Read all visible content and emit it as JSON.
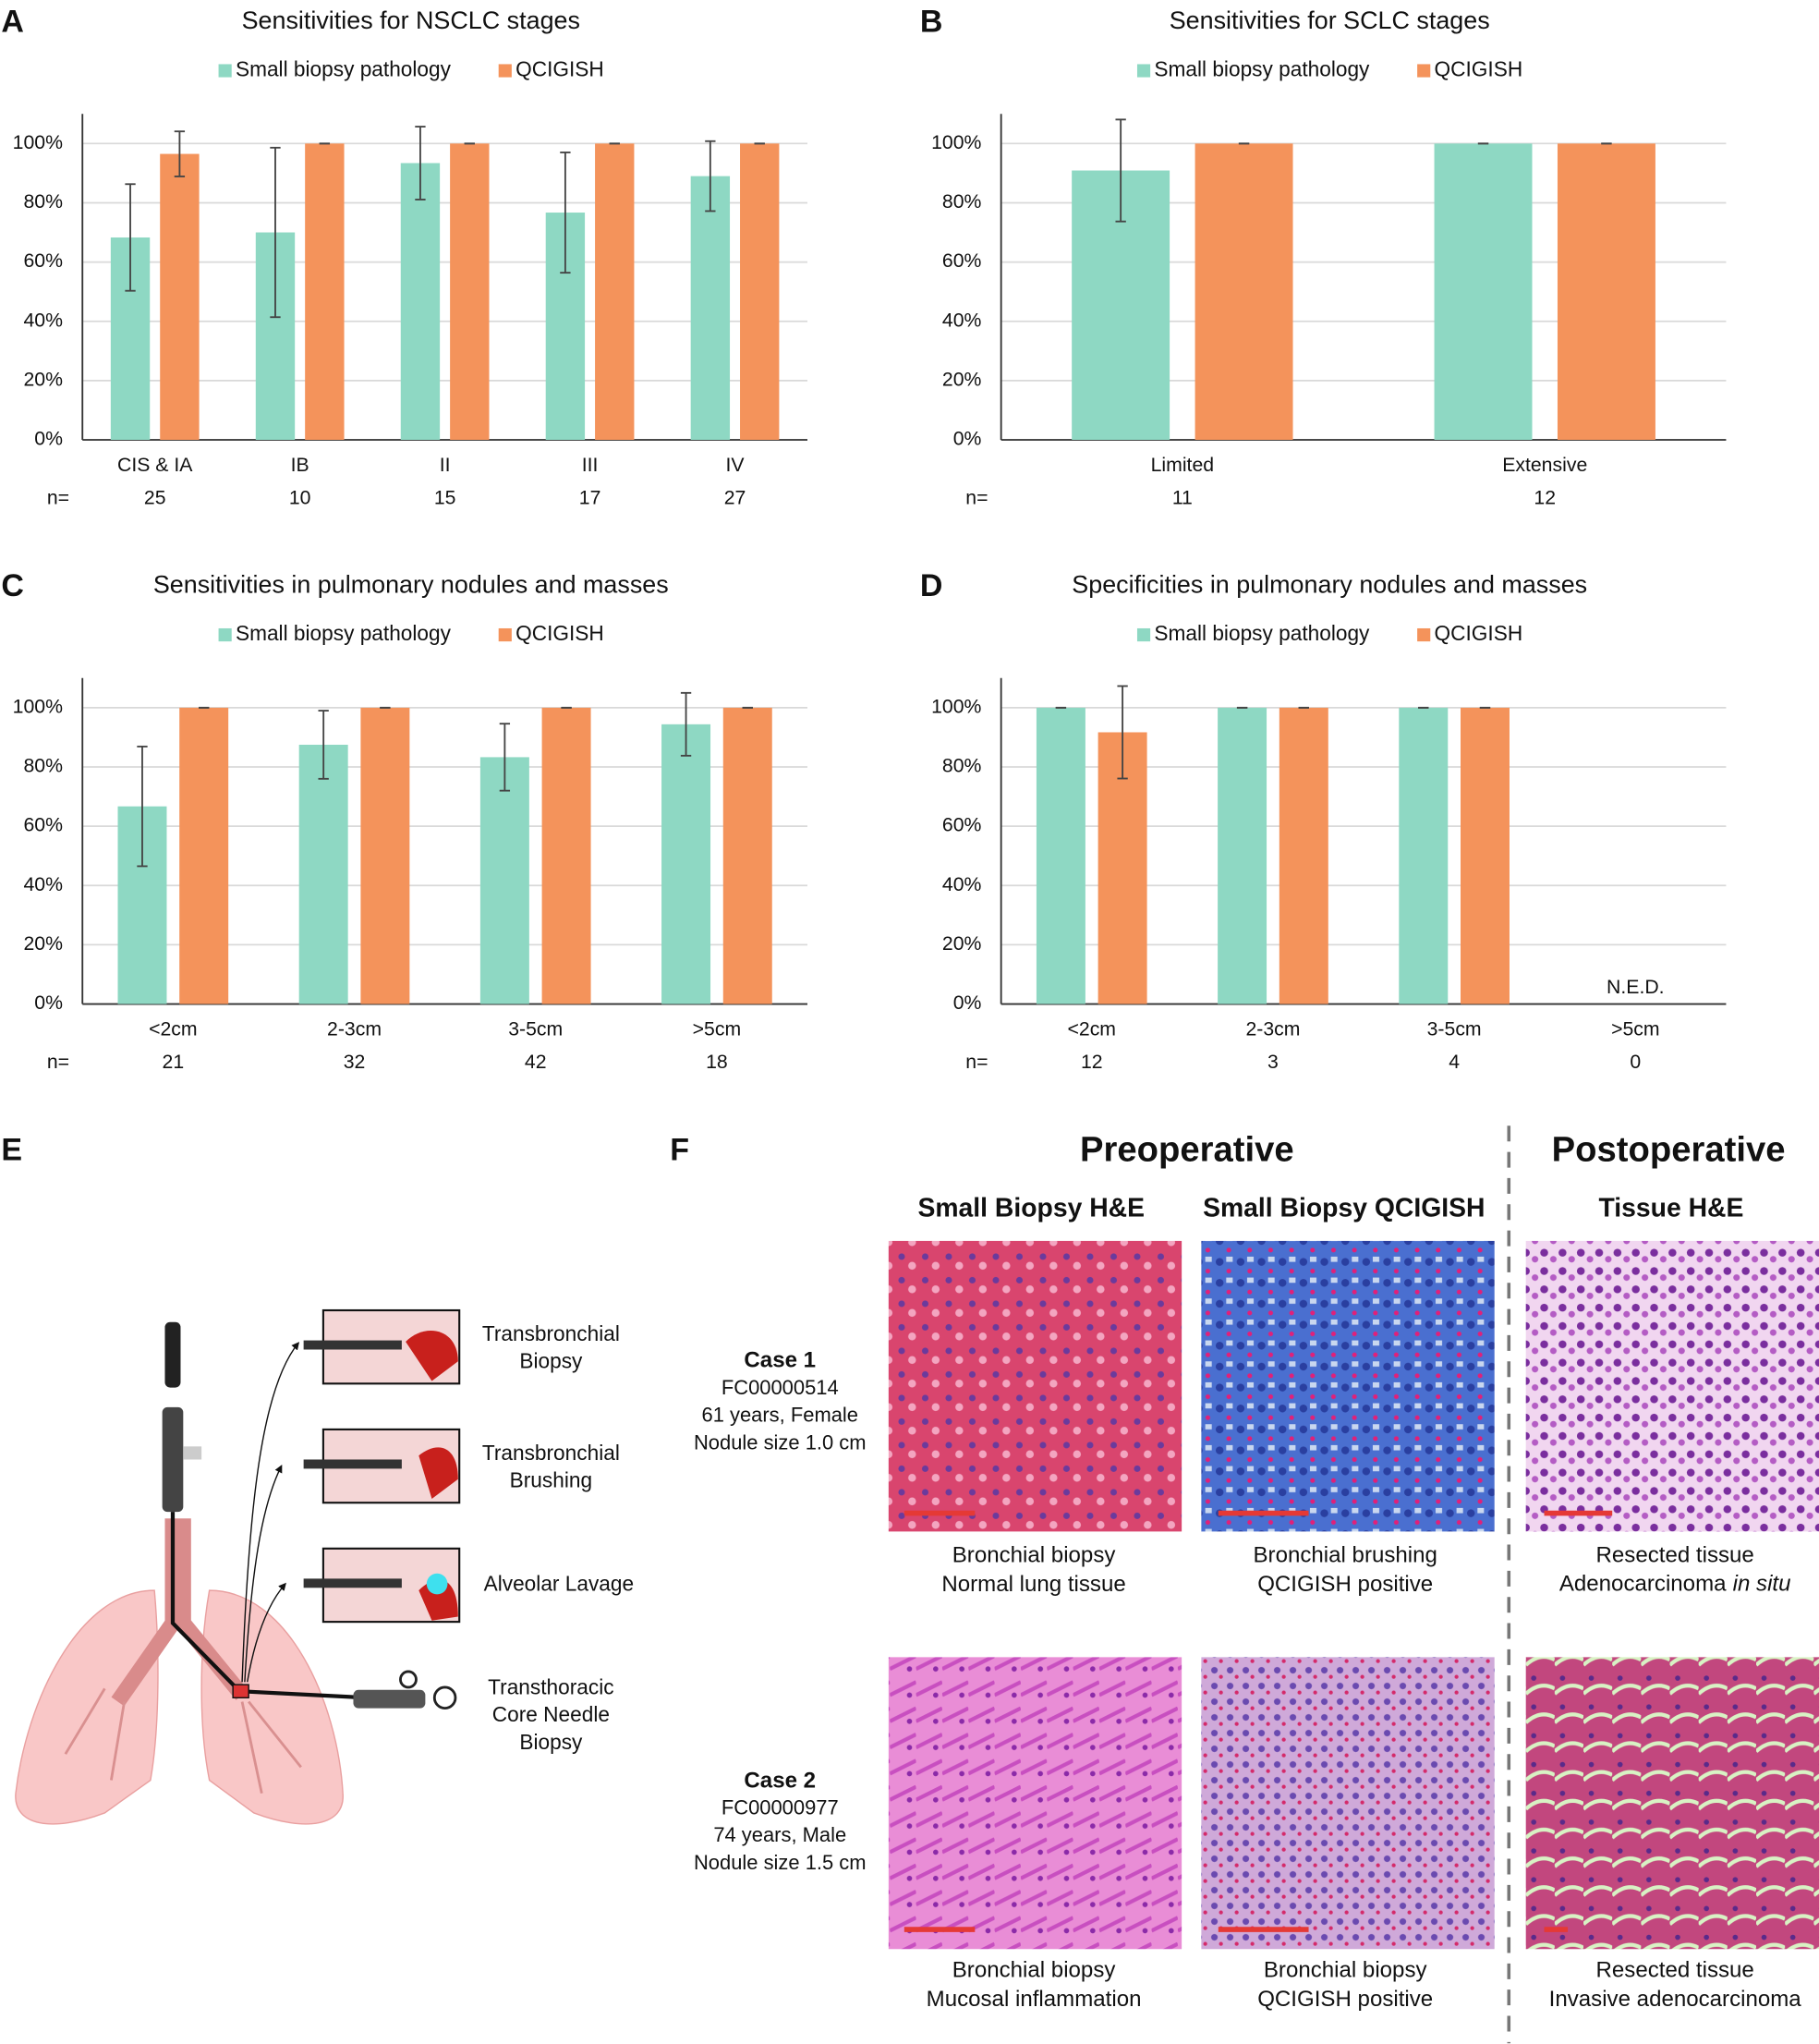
{
  "chart_data": [
    {
      "type": "bar",
      "panel": "A",
      "title": "Sensitivities for NSCLC stages",
      "categories": [
        "CIS & IA",
        "IB",
        "II",
        "III",
        "IV"
      ],
      "n_label": "n=",
      "n": [
        25,
        10,
        15,
        17,
        27
      ],
      "series": [
        {
          "name": "Small biopsy pathology",
          "color": "#8ed8c3",
          "values": [
            68.3,
            70,
            93.4,
            76.7,
            89
          ],
          "errors": [
            18,
            28.6,
            12.3,
            20.3,
            11.8
          ]
        },
        {
          "name": "QCIGISH",
          "color": "#f4935b",
          "values": [
            96.5,
            100,
            100,
            100,
            100
          ],
          "errors": [
            7.6,
            0,
            0,
            0,
            0
          ]
        }
      ],
      "ylim": [
        0,
        110
      ],
      "yticks": [
        {
          "value": 0,
          "label": "0%"
        },
        {
          "value": 20,
          "label": "20%"
        },
        {
          "value": 40,
          "label": "40%"
        },
        {
          "value": 60,
          "label": "60%"
        },
        {
          "value": 80,
          "label": "80%"
        },
        {
          "value": 100,
          "label": "100%"
        }
      ],
      "grid": true
    },
    {
      "type": "bar",
      "panel": "B",
      "title": "Sensitivities for SCLC stages",
      "categories": [
        "Limited",
        "Extensive"
      ],
      "n_label": "n=",
      "n": [
        11,
        12
      ],
      "series": [
        {
          "name": "Small biopsy pathology",
          "color": "#8ed8c3",
          "values": [
            90.9,
            100
          ],
          "errors": [
            17.2,
            0
          ]
        },
        {
          "name": "QCIGISH",
          "color": "#f4935b",
          "values": [
            100,
            100
          ],
          "errors": [
            0,
            0
          ]
        }
      ],
      "ylim": [
        0,
        110
      ],
      "yticks": [
        {
          "value": 0,
          "label": "0%"
        },
        {
          "value": 20,
          "label": "20%"
        },
        {
          "value": 40,
          "label": "40%"
        },
        {
          "value": 60,
          "label": "60%"
        },
        {
          "value": 80,
          "label": "80%"
        },
        {
          "value": 100,
          "label": "100%"
        }
      ],
      "grid": true
    },
    {
      "type": "bar",
      "panel": "C",
      "title": "Sensitivities in pulmonary nodules and masses",
      "categories": [
        "<2cm",
        "2-3cm",
        "3-5cm",
        ">5cm"
      ],
      "n_label": "n=",
      "n": [
        21,
        32,
        42,
        18
      ],
      "series": [
        {
          "name": "Small biopsy pathology",
          "color": "#8ed8c3",
          "values": [
            66.7,
            87.5,
            83.3,
            94.4
          ],
          "errors": [
            20.2,
            11.5,
            11.3,
            10.6
          ]
        },
        {
          "name": "QCIGISH",
          "color": "#f4935b",
          "values": [
            100,
            100,
            100,
            100
          ],
          "errors": [
            0,
            0,
            0,
            0
          ]
        }
      ],
      "ylim": [
        0,
        110
      ],
      "yticks": [
        {
          "value": 0,
          "label": "0%"
        },
        {
          "value": 20,
          "label": "20%"
        },
        {
          "value": 40,
          "label": "40%"
        },
        {
          "value": 60,
          "label": "60%"
        },
        {
          "value": 80,
          "label": "80%"
        },
        {
          "value": 100,
          "label": "100%"
        }
      ],
      "grid": true
    },
    {
      "type": "bar",
      "panel": "D",
      "title": "Specificities in pulmonary nodules and masses",
      "categories": [
        "<2cm",
        "2-3cm",
        "3-5cm",
        ">5cm"
      ],
      "n_label": "n=",
      "n": [
        12,
        3,
        4,
        0
      ],
      "series": [
        {
          "name": "Small biopsy pathology",
          "color": "#8ed8c3",
          "values": [
            100,
            100,
            100,
            null
          ],
          "errors": [
            0,
            0,
            0,
            null
          ]
        },
        {
          "name": "QCIGISH",
          "color": "#f4935b",
          "values": [
            91.7,
            100,
            100,
            null
          ],
          "errors": [
            15.6,
            0,
            0,
            null
          ]
        }
      ],
      "annotation": "N.E.D.",
      "ylim": [
        0,
        110
      ],
      "yticks": [
        {
          "value": 0,
          "label": "0%"
        },
        {
          "value": 20,
          "label": "20%"
        },
        {
          "value": 40,
          "label": "40%"
        },
        {
          "value": 60,
          "label": "60%"
        },
        {
          "value": 80,
          "label": "80%"
        },
        {
          "value": 100,
          "label": "100%"
        }
      ],
      "grid": true
    }
  ],
  "panel_e": {
    "label": "E",
    "methods": [
      [
        "Transbronchial",
        "Biopsy"
      ],
      [
        "Transbronchial",
        "Brushing"
      ],
      [
        "Alveolar Lavage"
      ],
      [
        "Transthoracic",
        "Core Needle",
        "Biopsy"
      ]
    ]
  },
  "panel_f": {
    "label": "F",
    "sections": [
      "Preoperative",
      "Postoperative"
    ],
    "columns": [
      "Small Biopsy H&E",
      "Small Biopsy QCIGISH",
      "Tissue H&E"
    ],
    "cases": [
      {
        "lines": [
          "Case 1",
          "FC00000514",
          "61 years, Female",
          "Nodule size 1.0 cm"
        ],
        "captions": [
          [
            "Bronchial biopsy",
            "Normal lung tissue"
          ],
          [
            "Bronchial brushing",
            "QCIGISH positive"
          ],
          [
            "Resected tissue",
            {
              "text": "Adenocarcinoma",
              "italic": "in situ"
            }
          ]
        ]
      },
      {
        "lines": [
          "Case 2",
          "FC00000977",
          "74 years, Male",
          "Nodule size 1.5 cm"
        ],
        "captions": [
          [
            "Bronchial biopsy",
            "Mucosal inflammation"
          ],
          [
            "Bronchial biopsy",
            "QCIGISH positive"
          ],
          [
            "Resected tissue",
            "Invasive adenocarcinoma"
          ]
        ]
      }
    ]
  }
}
